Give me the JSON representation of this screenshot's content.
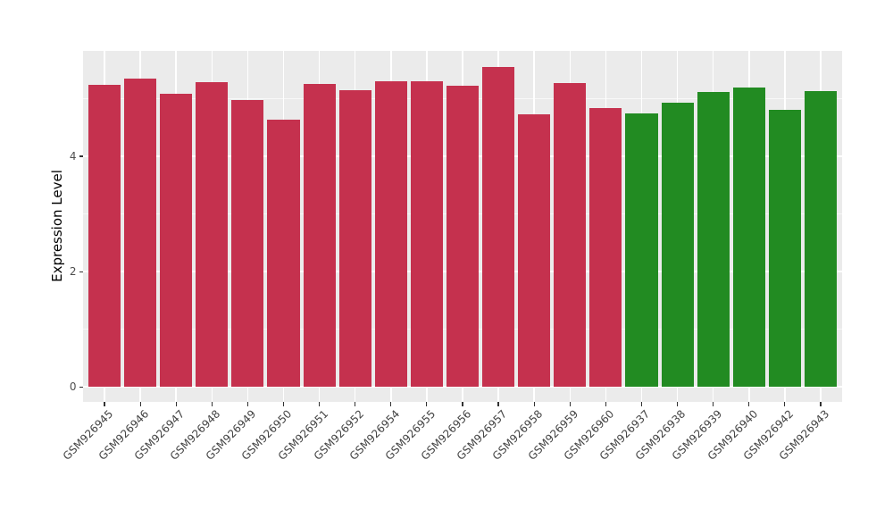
{
  "chart_data": {
    "type": "bar",
    "title": "",
    "xlabel": "",
    "ylabel": "Expression Level",
    "categories": [
      "GSM926945",
      "GSM926946",
      "GSM926947",
      "GSM926948",
      "GSM926949",
      "GSM926950",
      "GSM926951",
      "GSM926952",
      "GSM926954",
      "GSM926955",
      "GSM926956",
      "GSM926957",
      "GSM926958",
      "GSM926959",
      "GSM926960",
      "GSM926937",
      "GSM926938",
      "GSM926939",
      "GSM926940",
      "GSM926942",
      "GSM926943"
    ],
    "values": [
      5.24,
      5.35,
      5.08,
      5.28,
      4.97,
      4.64,
      5.25,
      5.15,
      5.3,
      5.31,
      5.22,
      5.55,
      4.73,
      5.27,
      4.84,
      4.75,
      4.93,
      5.11,
      5.2,
      4.8,
      5.14
    ],
    "bar_groups": [
      "red",
      "red",
      "red",
      "red",
      "red",
      "red",
      "red",
      "red",
      "red",
      "red",
      "red",
      "red",
      "red",
      "red",
      "red",
      "green",
      "green",
      "green",
      "green",
      "green",
      "green"
    ],
    "palette": {
      "red": "#C5314E",
      "green": "#228B22"
    },
    "y_ticks": [
      0,
      2,
      4
    ],
    "y_minor_ticks": [
      1,
      3,
      5
    ],
    "ylim": [
      -0.26,
      5.83
    ],
    "legend_position": "none",
    "grid": true,
    "panel_bg": "#EBEBEB",
    "grid_color": "#FFFFFF",
    "tick_color": "#333333",
    "tick_label_color": "#4D4D4D"
  }
}
